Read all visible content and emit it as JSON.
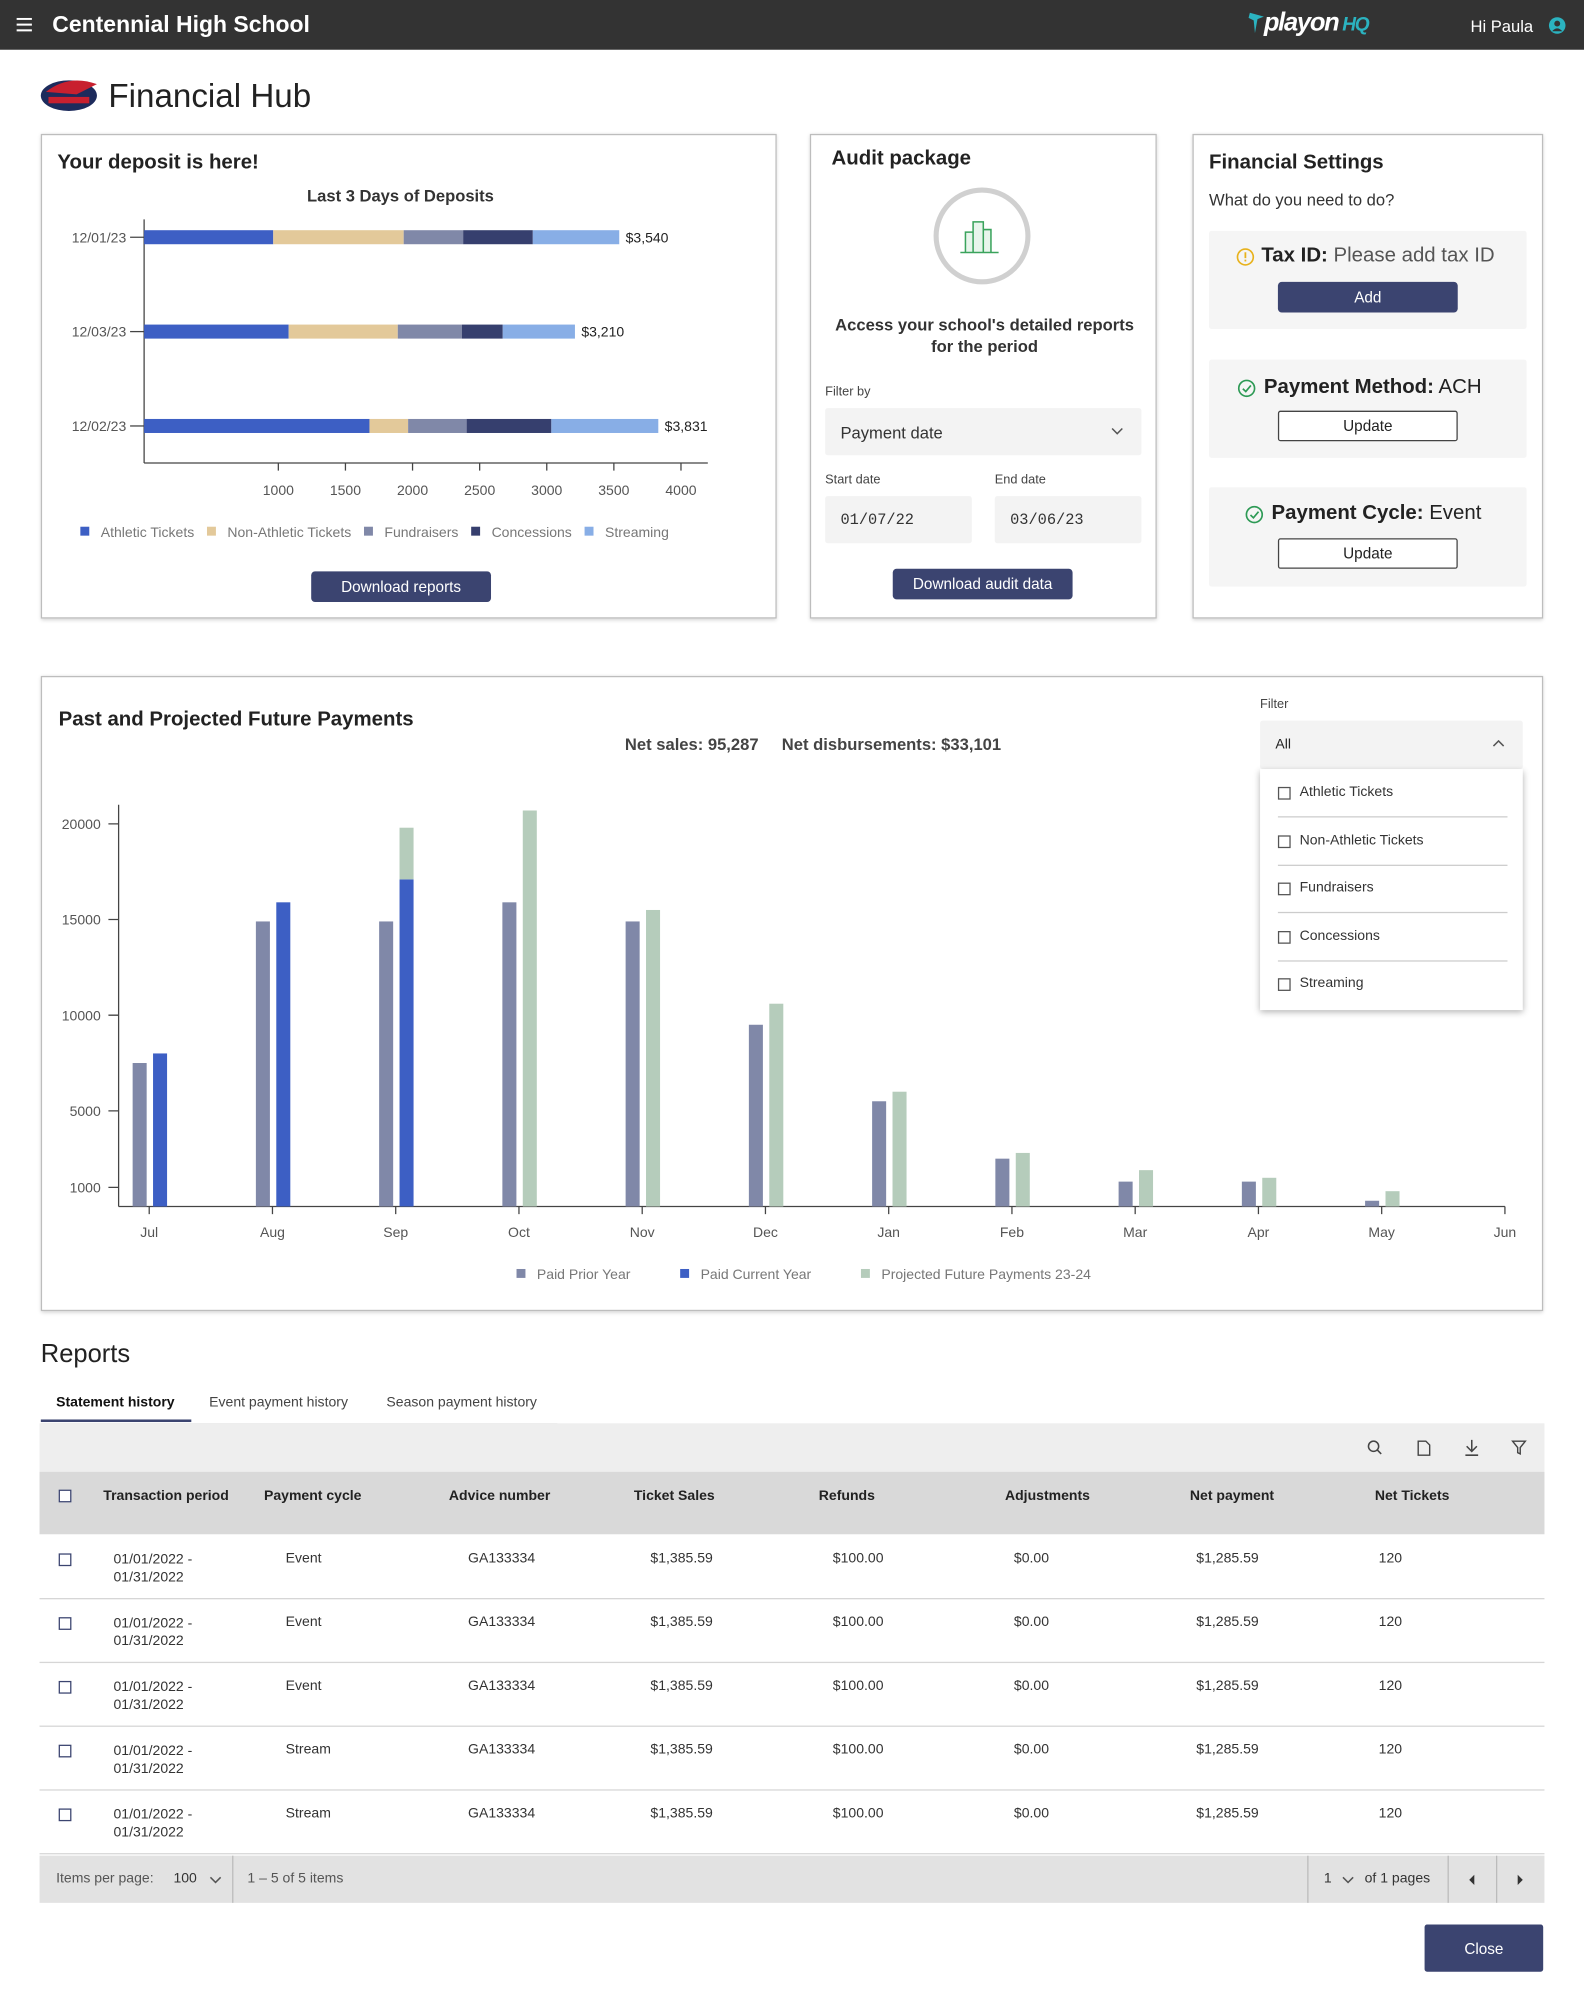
{
  "header": {
    "school": "Centennial High School",
    "brand": "playon",
    "brand_suffix": "HQ",
    "greeting": "Hi Paula"
  },
  "page_title": "Financial Hub",
  "deposit_card": {
    "heading": "Your deposit is here!",
    "button": "Download reports"
  },
  "audit": {
    "heading": "Audit package",
    "description": "Access your school's detailed reports for the period",
    "filter_label": "Filter by",
    "filter_value": "Payment date",
    "start_label": "Start date",
    "start_value": "01/07/22",
    "end_label": "End date",
    "end_value": "03/06/23",
    "button": "Download audit data"
  },
  "settings": {
    "heading": "Financial Settings",
    "prompt": "What do you need to do?",
    "items": [
      {
        "label": "Tax ID:",
        "value": "Please add tax ID",
        "button": "Add"
      },
      {
        "label": "Payment Method:",
        "value": "ACH",
        "button": "Update"
      },
      {
        "label": "Payment Cycle:",
        "value": "Event",
        "button": "Update"
      }
    ]
  },
  "payments_card": {
    "net_sales": "Net sales: 95,287",
    "net_disbursements": "Net disbursements: $33,101",
    "filter_label": "Filter",
    "filter_value": "All",
    "options": [
      "Athletic Tickets",
      "Non-Athletic Tickets",
      "Fundraisers",
      "Concessions",
      "Streaming"
    ]
  },
  "chart_data": [
    {
      "type": "bar",
      "orientation": "horizontal",
      "stacked": true,
      "title": "Last 3 Days of Deposits",
      "categories": [
        "12/01/23",
        "12/03/23",
        "12/02/23"
      ],
      "series": [
        {
          "name": "Athletic Tickets",
          "color": "#3d5fc4",
          "values": [
            962,
            1077,
            1679
          ]
        },
        {
          "name": "Non-Athletic Tickets",
          "color": "#e3c99a",
          "values": [
            972,
            813,
            288
          ]
        },
        {
          "name": "Fundraisers",
          "color": "#8088a8",
          "values": [
            443,
            477,
            436
          ]
        },
        {
          "name": "Concessions",
          "color": "#363f6e",
          "values": [
            519,
            305,
            631
          ]
        },
        {
          "name": "Streaming",
          "color": "#88aee6",
          "values": [
            644,
            538,
            797
          ]
        }
      ],
      "totals": [
        3540,
        3210,
        3831
      ],
      "total_labels": [
        "$3,540",
        "$3,210",
        "$3,831"
      ],
      "xlim": [
        0,
        4200
      ],
      "xticks": [
        1000,
        1500,
        2000,
        2500,
        3000,
        3500,
        4000
      ]
    },
    {
      "type": "bar",
      "title": "Past and Projected Future Payments",
      "categories": [
        "Jul",
        "Aug",
        "Sep",
        "Oct",
        "Nov",
        "Dec",
        "Jan",
        "Feb",
        "Mar",
        "Apr",
        "May",
        "Jun"
      ],
      "series": [
        {
          "name": "Paid Prior Year",
          "color": "#8088a8",
          "values": [
            7500,
            14900,
            14900,
            15900,
            14900,
            9500,
            5500,
            2500,
            1300,
            1300,
            300,
            null
          ]
        },
        {
          "name": "Paid Current Year",
          "color": "#3d5fc4",
          "values": [
            8000,
            15900,
            17100,
            null,
            null,
            null,
            null,
            null,
            null,
            null,
            null,
            null
          ]
        },
        {
          "name": "Projected Future Payments 23-24",
          "color": "#b5ccbb",
          "values": [
            null,
            null,
            2700,
            20700,
            15500,
            10600,
            6000,
            2800,
            1900,
            1500,
            800,
            null
          ]
        }
      ],
      "slots": [
        [
          0
        ],
        [
          1,
          2
        ]
      ],
      "ylim": [
        0,
        21000
      ],
      "yticks": [
        1000,
        5000,
        10000,
        15000,
        20000
      ]
    }
  ],
  "reports": {
    "heading": "Reports",
    "tabs": [
      "Statement history",
      "Event payment history",
      "Season payment history"
    ],
    "columns": [
      "Transaction period",
      "Payment cycle",
      "Advice number",
      "Ticket Sales",
      "Refunds",
      "Adjustments",
      "Net payment",
      "Net Tickets"
    ],
    "rows": [
      [
        "01/01/2022 - 01/31/2022",
        "Event",
        "GA133334",
        "$1,385.59",
        "$100.00",
        "$0.00",
        "$1,285.59",
        "120"
      ],
      [
        "01/01/2022 - 01/31/2022",
        "Event",
        "GA133334",
        "$1,385.59",
        "$100.00",
        "$0.00",
        "$1,285.59",
        "120"
      ],
      [
        "01/01/2022 - 01/31/2022",
        "Event",
        "GA133334",
        "$1,385.59",
        "$100.00",
        "$0.00",
        "$1,285.59",
        "120"
      ],
      [
        "01/01/2022 - 01/31/2022",
        "Stream",
        "GA133334",
        "$1,385.59",
        "$100.00",
        "$0.00",
        "$1,285.59",
        "120"
      ],
      [
        "01/01/2022 - 01/31/2022",
        "Stream",
        "GA133334",
        "$1,385.59",
        "$100.00",
        "$0.00",
        "$1,285.59",
        "120"
      ]
    ],
    "items_label": "Items per page:",
    "items_value": "100",
    "range": "1 – 5 of 5 items",
    "page": "1",
    "pages": "of 1 pages",
    "close": "Close"
  }
}
